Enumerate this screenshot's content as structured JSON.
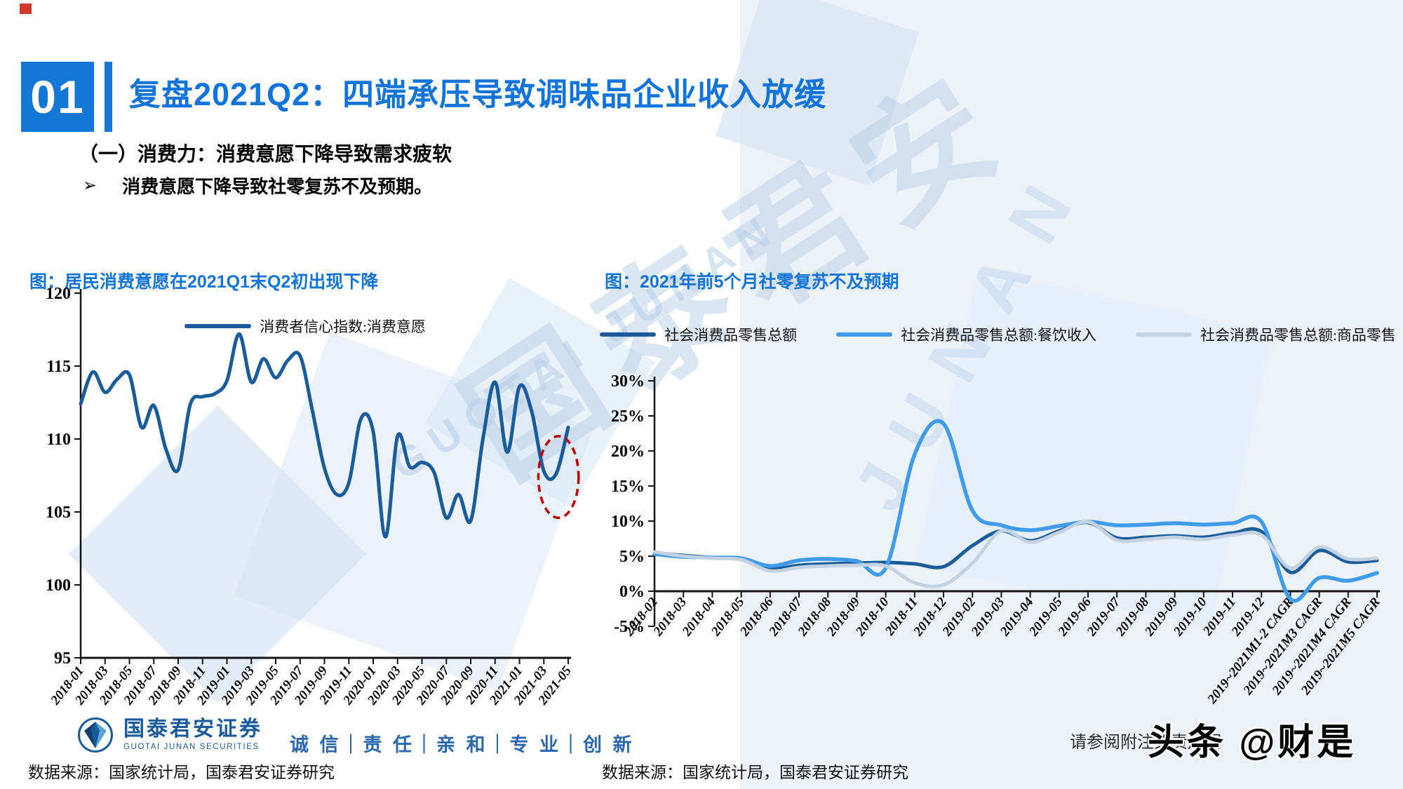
{
  "page": {
    "section_number": "01",
    "title": "复盘2021Q2：四端承压导致调味品企业收入放缓",
    "subtitle": "（一）消费力：消费意愿下降导致需求疲软",
    "bullet_marker": "➢",
    "bullet": "消费意愿下降导致社零复苏不及预期。"
  },
  "watermark": {
    "cn": "国泰君安",
    "en": "GUOTAI JUNAN",
    "side": "JUNAN",
    "overlay_badge": "头条 @财是"
  },
  "footer": {
    "logo_cn": "国泰君安证券",
    "logo_en": "GUOTAI JUNAN SECURITIES",
    "motto": "诚 信｜责 任｜亲 和｜专 业｜创 新",
    "source_left": "数据来源：国家统计局，国泰君安证券研究",
    "source_right": "数据来源：国家统计局，国泰君安证券研究",
    "disclaimer": "请参阅附注免责声明"
  },
  "chart_data": [
    {
      "type": "line",
      "title": "图：居民消费意愿在2021Q1末Q2初出现下降",
      "legend": [
        {
          "label": "消费者信心指数:消费意愿",
          "color": "#1a5b9a",
          "swatch_width": 95
        }
      ],
      "ylim": [
        95,
        120
      ],
      "yticks": [
        {
          "v": 120,
          "label": "120"
        },
        {
          "v": 115,
          "label": "115"
        },
        {
          "v": 110,
          "label": "110"
        },
        {
          "v": 105,
          "label": "105"
        },
        {
          "v": 100,
          "label": "100"
        },
        {
          "v": 95,
          "label": "95"
        }
      ],
      "xtick_step": 2,
      "categories": [
        "2018-01",
        "2018-02",
        "2018-03",
        "2018-04",
        "2018-05",
        "2018-06",
        "2018-07",
        "2018-08",
        "2018-09",
        "2018-10",
        "2018-11",
        "2018-12",
        "2019-01",
        "2019-02",
        "2019-03",
        "2019-04",
        "2019-05",
        "2019-06",
        "2019-07",
        "2019-08",
        "2019-09",
        "2019-10",
        "2019-11",
        "2019-12",
        "2020-01",
        "2020-02",
        "2020-03",
        "2020-04",
        "2020-05",
        "2020-06",
        "2020-07",
        "2020-08",
        "2020-09",
        "2020-10",
        "2020-11",
        "2020-12",
        "2021-01",
        "2021-02",
        "2021-03",
        "2021-04",
        "2021-05"
      ],
      "series": [
        {
          "name": "消费者信心指数:消费意愿",
          "color": "#1a5b9a",
          "width": 5,
          "values": [
            112.4,
            114.6,
            113.2,
            114.1,
            114.4,
            110.8,
            112.3,
            109.3,
            107.9,
            112.4,
            112.9,
            113.1,
            114.0,
            117.2,
            113.9,
            115.5,
            114.2,
            115.4,
            115.7,
            112.0,
            108.0,
            106.2,
            107.0,
            111.4,
            110.5,
            103.3,
            110.2,
            108.1,
            108.4,
            107.7,
            104.6,
            106.2,
            104.4,
            110.0,
            113.9,
            109.1,
            113.6,
            111.9,
            107.8,
            107.6,
            110.8
          ]
        }
      ],
      "annotation": {
        "shape": "dashed-ellipse",
        "color": "#c00000",
        "center_category_index": 39.2,
        "center_value": 107.4,
        "radius_categories": 1.65,
        "radius_value": 2.8
      }
    },
    {
      "type": "line",
      "title": "图：2021年前5个月社零复苏不及预期",
      "legend": [
        {
          "label": "社会消费品零售总额",
          "color": "#1a5b9a",
          "swatch_width": 80
        },
        {
          "label": "社会消费品零售总额:餐饮收入",
          "color": "#419bec",
          "swatch_width": 80
        },
        {
          "label": "社会消费品零售总额:商品零售",
          "color": "#c3d2e2",
          "swatch_width": 80
        }
      ],
      "ylim": [
        -5,
        30
      ],
      "x_axis_at": 0,
      "yticks": [
        {
          "v": 30,
          "label": "30%"
        },
        {
          "v": 25,
          "label": "25%"
        },
        {
          "v": 20,
          "label": "20%"
        },
        {
          "v": 15,
          "label": "15%"
        },
        {
          "v": 10,
          "label": "10%"
        },
        {
          "v": 5,
          "label": "5%"
        },
        {
          "v": 0,
          "label": "0%"
        },
        {
          "v": -5,
          "label": "-5%"
        }
      ],
      "xtick_step": 1,
      "categories": [
        "2018-02",
        "2018-03",
        "2018-04",
        "2018-05",
        "2018-06",
        "2018-07",
        "2018-08",
        "2018-09",
        "2018-10",
        "2018-11",
        "2018-12",
        "2019-02",
        "2019-03",
        "2019-04",
        "2019-05",
        "2019-06",
        "2019-07",
        "2019-08",
        "2019-09",
        "2019-10",
        "2019-11",
        "2019-12",
        "2019~2021M1-2 CAGR",
        "2019~2021M3 CAGR",
        "2019~2021M4 CAGR",
        "2019~2021M5 CAGR"
      ],
      "series": [
        {
          "name": "社会消费品零售总额",
          "color": "#1a5b9a",
          "width": 5,
          "values": [
            5.5,
            5.1,
            4.8,
            4.6,
            3.2,
            3.7,
            3.9,
            4.0,
            4.1,
            3.9,
            3.5,
            6.5,
            8.6,
            7.2,
            8.6,
            9.8,
            7.6,
            7.7,
            7.9,
            7.7,
            8.3,
            8.5,
            2.7,
            5.8,
            4.2,
            4.4
          ]
        },
        {
          "name": "社会消费品零售总额:餐饮收入",
          "color": "#419bec",
          "width": 5.5,
          "values": [
            5.3,
            4.9,
            4.8,
            4.7,
            3.6,
            4.4,
            4.6,
            4.3,
            3.3,
            19.5,
            23.9,
            11.5,
            9.4,
            8.7,
            9.3,
            9.9,
            9.4,
            9.5,
            9.7,
            9.5,
            9.7,
            9.9,
            -1.1,
            1.9,
            1.5,
            2.6
          ]
        },
        {
          "name": "社会消费品零售总额:商品零售",
          "color": "#c3d2e2",
          "width": 5,
          "values": [
            5.6,
            5.0,
            4.7,
            4.5,
            2.9,
            3.4,
            3.6,
            3.7,
            3.6,
            1.2,
            0.9,
            4.0,
            8.6,
            7.0,
            8.4,
            9.9,
            7.3,
            7.4,
            7.7,
            7.4,
            8.0,
            8.0,
            3.3,
            6.3,
            4.6,
            4.7
          ]
        }
      ]
    }
  ]
}
